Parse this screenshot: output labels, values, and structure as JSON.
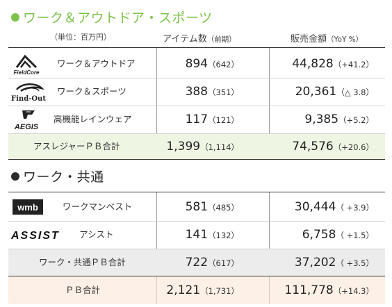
{
  "section_outdoor": {
    "title": "ワーク＆アウトドア・スポーツ"
  },
  "headers": {
    "unit": "（単位：百万円）",
    "items": "アイテム数",
    "items_prev": "（前期）",
    "sales": "販売金額",
    "yoy": "（YoY %）"
  },
  "outdoor_rows": [
    {
      "logo": "FieldCore",
      "name": "ワーク＆アウトドア",
      "items": "894",
      "items_prev": "（642）",
      "sales": "44,828",
      "yoy": "（+41.2）"
    },
    {
      "logo": "Find-Out",
      "name": "ワーク＆スポーツ",
      "items": "388",
      "items_prev": "（351）",
      "sales": "20,361",
      "yoy": "（△ 3.8）"
    },
    {
      "logo": "AEGIS",
      "name": "高機能レインウェア",
      "items": "117",
      "items_prev": "（121）",
      "sales": "9,385",
      "yoy": "（+5.2）"
    }
  ],
  "outdoor_total": {
    "name": "アスレジャーＰＢ合計",
    "items": "1,399",
    "items_prev": "（1,114）",
    "sales": "74,576",
    "yoy": "（+20.6）"
  },
  "section_work": {
    "title": "ワーク・共通"
  },
  "work_rows": [
    {
      "logo": "wmb",
      "name": "ワークマンベスト",
      "items": "581",
      "items_prev": "（485）",
      "sales": "30,444",
      "yoy": "（ +3.9）"
    },
    {
      "logo": "ASSIST",
      "name": "アシスト",
      "items": "141",
      "items_prev": "（132）",
      "sales": "6,758",
      "yoy": "（ +1.5）"
    }
  ],
  "work_total": {
    "name": "ワーク・共通ＰＢ合計",
    "items": "722",
    "items_prev": "（617）",
    "sales": "37,202",
    "yoy": "（ +3.5）"
  },
  "grand_total": {
    "name": "ＰＢ合計",
    "items": "2,121",
    "items_prev": "（1,731）",
    "sales": "111,778",
    "yoy": "（+14.3）"
  },
  "colors": {
    "accent_green": "#7cc24a",
    "band_green": "#eef6e3",
    "band_gray": "#ececec",
    "band_peach": "#fdf0e6"
  }
}
